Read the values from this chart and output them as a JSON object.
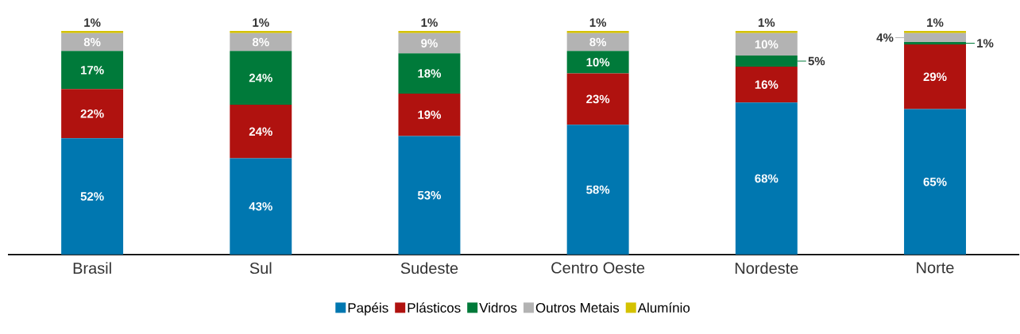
{
  "chart_data": {
    "type": "bar",
    "stacked": true,
    "legend": "bottom",
    "categories": [
      "Brasil",
      "Sul",
      "Sudeste",
      "Centro Oeste",
      "Nordeste",
      "Norte"
    ],
    "series": [
      {
        "name": "Papéis",
        "color": "#0077b0",
        "values": [
          52,
          43,
          53,
          58,
          68,
          65
        ],
        "value_labels": [
          "52%",
          "43%",
          "53%",
          "58%",
          "68%",
          "65%"
        ]
      },
      {
        "name": "Plásticos",
        "color": "#b0120f",
        "values": [
          22,
          24,
          19,
          23,
          16,
          29
        ],
        "value_labels": [
          "22%",
          "24%",
          "19%",
          "23%",
          "16%",
          "29%"
        ]
      },
      {
        "name": "Vidros",
        "color": "#007a3a",
        "values": [
          17,
          24,
          18,
          10,
          5,
          1
        ],
        "value_labels": [
          "17%",
          "24%",
          "18%",
          "10%",
          "5%",
          "1%"
        ]
      },
      {
        "name": "Outros Metais",
        "color": "#b3b3b3",
        "values": [
          8,
          8,
          9,
          8,
          10,
          4
        ],
        "value_labels": [
          "8%",
          "8%",
          "9%",
          "8%",
          "10%",
          "4%"
        ]
      },
      {
        "name": "Alumínio",
        "color": "#d4c200",
        "values": [
          1,
          1,
          1,
          1,
          1,
          1
        ],
        "value_labels": [
          "1%",
          "1%",
          "1%",
          "1%",
          "1%",
          "1%"
        ]
      }
    ]
  }
}
